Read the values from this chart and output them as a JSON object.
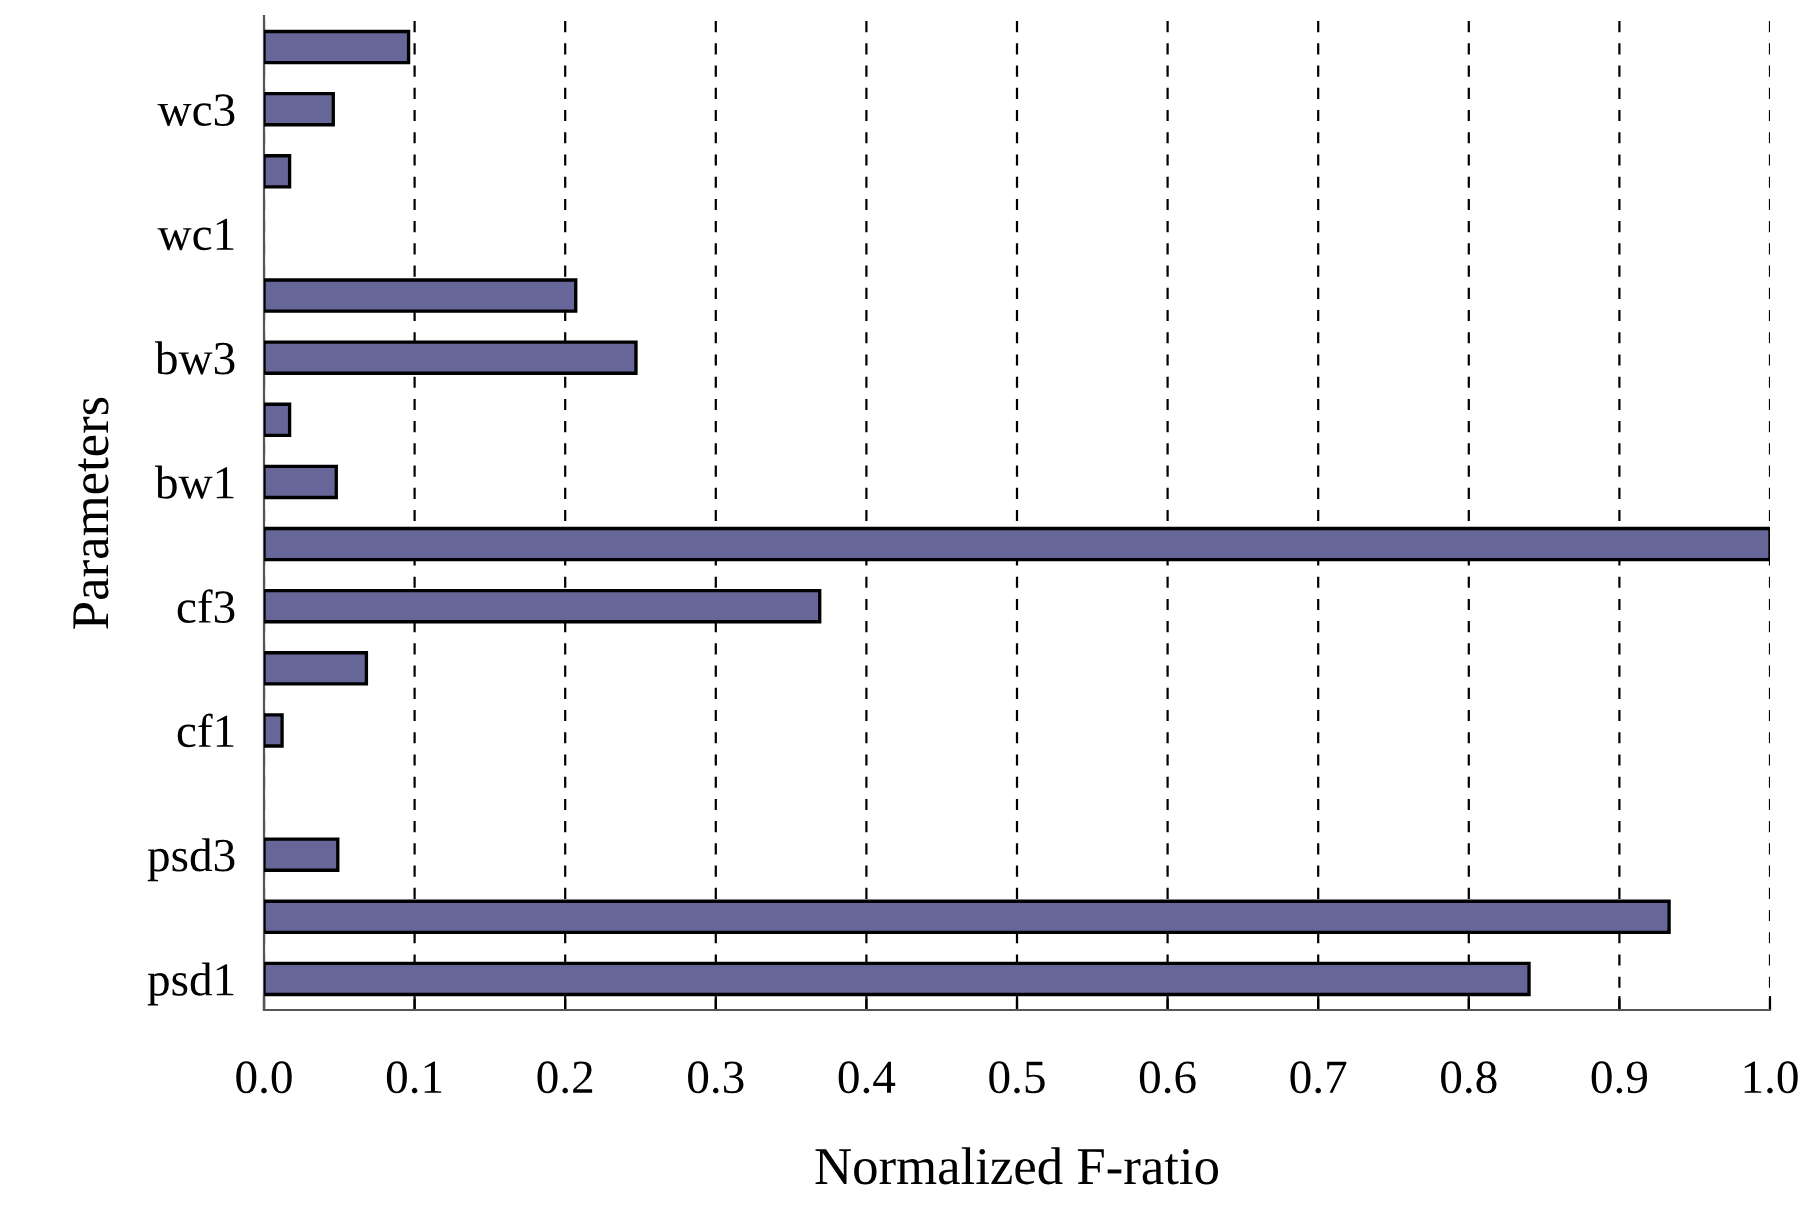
{
  "chart_data": {
    "type": "bar",
    "orientation": "horizontal",
    "xlabel": "Normalized F-ratio",
    "ylabel": "Parameters",
    "categories": [
      null,
      "wc3",
      null,
      "wc1",
      null,
      "bw3",
      null,
      "bw1",
      null,
      "cf3",
      null,
      "cf1",
      null,
      "psd3",
      null,
      "psd1"
    ],
    "values": [
      0.096,
      0.046,
      0.017,
      null,
      0.207,
      0.247,
      0.017,
      0.048,
      1.0,
      0.369,
      0.068,
      0.012,
      null,
      0.049,
      0.933,
      0.84
    ],
    "color": "#666699",
    "xlim": [
      0,
      1
    ],
    "xticks": [
      {
        "value": 0,
        "label": "0.0"
      },
      {
        "value": 0.1,
        "label": "0.1"
      },
      {
        "value": 0.2,
        "label": "0.2"
      },
      {
        "value": 0.3,
        "label": "0.3"
      },
      {
        "value": 0.4,
        "label": "0.4"
      },
      {
        "value": 0.5,
        "label": "0.5"
      },
      {
        "value": 0.6,
        "label": "0.6"
      },
      {
        "value": 0.7,
        "label": "0.7"
      },
      {
        "value": 0.8,
        "label": "0.8"
      },
      {
        "value": 0.9,
        "label": "0.9"
      },
      {
        "value": 1,
        "label": "1.0"
      }
    ],
    "grid": "x"
  }
}
